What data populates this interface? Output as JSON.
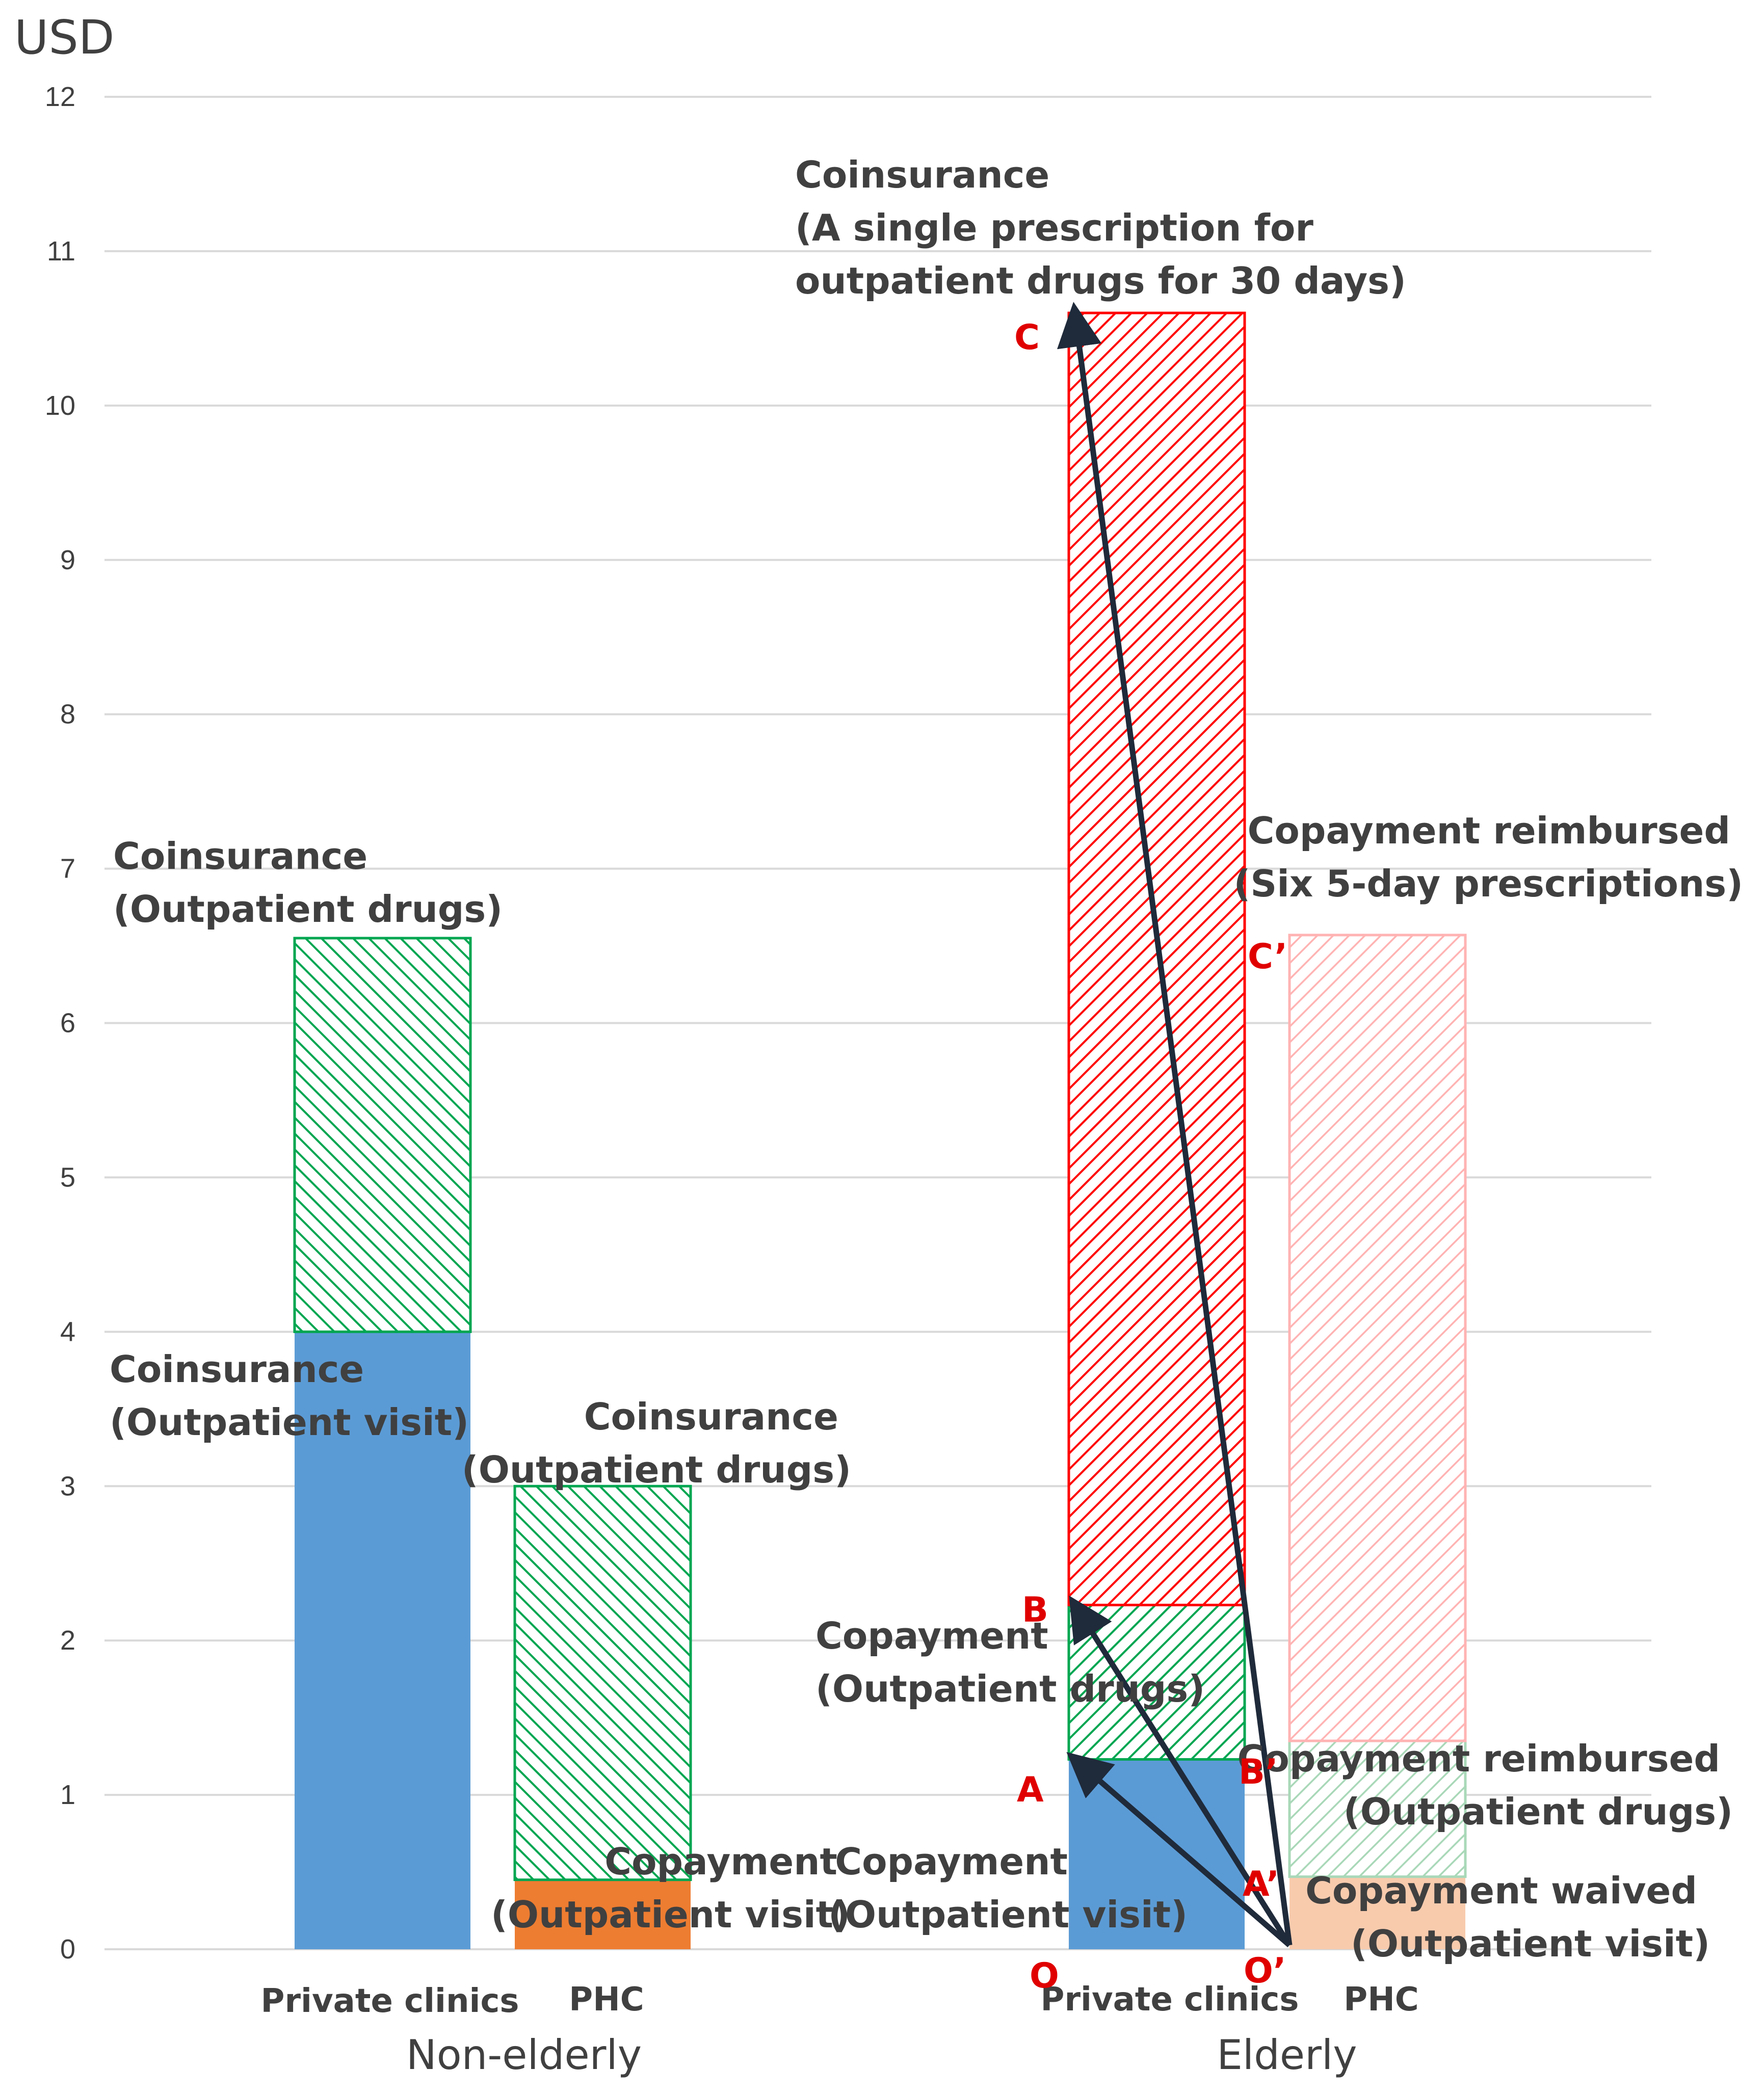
{
  "chart_data": {
    "type": "bar",
    "stacked": true,
    "ylabel": "USD",
    "ylim": [
      0,
      12
    ],
    "yticks": [
      0,
      1,
      2,
      3,
      4,
      5,
      6,
      7,
      8,
      9,
      10,
      11,
      12
    ],
    "grid": true,
    "groups": [
      "Non-elderly",
      "Elderly"
    ],
    "categories": [
      "Private clinics",
      "PHC",
      "Private clinics",
      "PHC"
    ],
    "bars": [
      {
        "group": "Non-elderly",
        "category": "Private clinics",
        "segments": [
          {
            "label": "Coinsurance (Outpatient visit)",
            "from": 0,
            "to": 4.0,
            "color": "#5b9bd5",
            "fill": "solid"
          },
          {
            "label": "Coinsurance (Outpatient drugs)",
            "from": 4.0,
            "to": 6.55,
            "color": "#00a651",
            "fill": "hatch-back"
          }
        ]
      },
      {
        "group": "Non-elderly",
        "category": "PHC",
        "segments": [
          {
            "label": "Copayment (Outpatient visit)",
            "from": 0,
            "to": 0.45,
            "color": "#ed7d31",
            "fill": "solid"
          },
          {
            "label": "Coinsurance (Outpatient drugs)",
            "from": 0.45,
            "to": 3.0,
            "color": "#00a651",
            "fill": "hatch-back"
          }
        ]
      },
      {
        "group": "Elderly",
        "category": "Private clinics",
        "segments": [
          {
            "label": "Copayment (Outpatient visit)",
            "from": 0,
            "to": 1.23,
            "color": "#5b9bd5",
            "fill": "solid"
          },
          {
            "label": "Copayment (Outpatient drugs)",
            "from": 1.23,
            "to": 2.23,
            "color": "#00a651",
            "fill": "hatch-fwd"
          },
          {
            "label": "Coinsurance (A single prescription for outpatient drugs for 30 days)",
            "from": 2.23,
            "to": 10.6,
            "color": "#ff0000",
            "fill": "hatch-fwd"
          }
        ]
      },
      {
        "group": "Elderly",
        "category": "PHC",
        "segments": [
          {
            "label": "Copayment waived (Outpatient visit)",
            "from": 0,
            "to": 0.47,
            "color": "#f8cbad",
            "fill": "solid"
          },
          {
            "label": "Copayment reimbursed (Outpatient drugs)",
            "from": 0.47,
            "to": 1.35,
            "color": "#a9d8b8",
            "fill": "hatch-fwd-light"
          },
          {
            "label": "Copayment reimbursed (Six 5-day prescriptions)",
            "from": 1.35,
            "to": 6.57,
            "color": "#ffb3b3",
            "fill": "hatch-fwd-light"
          }
        ]
      }
    ],
    "annotations": [
      {
        "lines": [
          "Coinsurance",
          "(A single prescription for",
          "outpatient drugs for 30 days)"
        ]
      },
      {
        "lines": [
          "Coinsurance",
          "(Outpatient drugs)"
        ]
      },
      {
        "lines": [
          "Coinsurance",
          "(Outpatient visit)"
        ]
      },
      {
        "lines": [
          "Coinsurance",
          "(Outpatient drugs)"
        ]
      },
      {
        "lines": [
          "Copayment",
          "(Outpatient visit)"
        ]
      },
      {
        "lines": [
          "Copayment",
          "(Outpatient visit)"
        ]
      },
      {
        "lines": [
          "Copayment",
          "(Outpatient drugs)"
        ]
      },
      {
        "lines": [
          "Copayment reimbursed",
          "(Six 5-day prescriptions)"
        ]
      },
      {
        "lines": [
          "Copayment reimbursed",
          "(Outpatient drugs)"
        ]
      },
      {
        "lines": [
          "Copayment waived",
          "(Outpatient visit)"
        ]
      }
    ],
    "points": [
      {
        "label": "O",
        "value": 0
      },
      {
        "label": "A",
        "value": 1.23
      },
      {
        "label": "B",
        "value": 2.23
      },
      {
        "label": "C",
        "value": 10.6
      },
      {
        "label": "O’",
        "value": 0
      },
      {
        "label": "A’",
        "value": 0.47
      },
      {
        "label": "B’",
        "value": 1.35
      },
      {
        "label": "C’",
        "value": 6.57
      }
    ],
    "arrows": [
      {
        "from": "O’",
        "to": "A"
      },
      {
        "from": "O’",
        "to": "B"
      },
      {
        "from": "O’",
        "to": "C"
      }
    ]
  }
}
